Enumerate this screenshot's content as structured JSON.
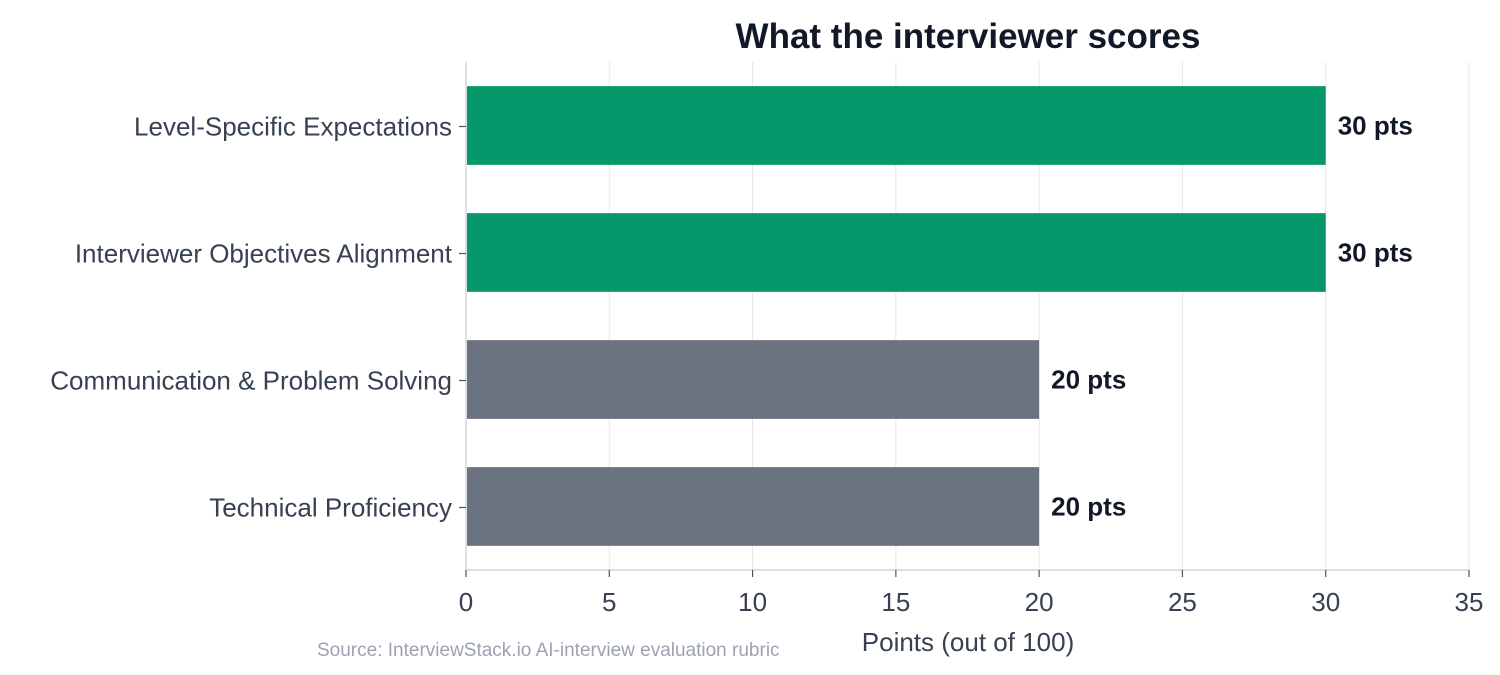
{
  "chart_data": {
    "type": "bar",
    "orientation": "horizontal",
    "title": "What the interviewer scores",
    "xlabel": "Points (out of 100)",
    "ylabel": "",
    "categories": [
      "Level-Specific Expectations",
      "Interviewer Objectives Alignment",
      "Communication & Problem Solving",
      "Technical Proficiency"
    ],
    "values": [
      30,
      30,
      20,
      20
    ],
    "value_labels": [
      "30 pts",
      "30 pts",
      "20 pts",
      "20 pts"
    ],
    "bar_colors": [
      "#06986a",
      "#06986a",
      "#6b7280",
      "#6b7280"
    ],
    "xlim": [
      0,
      35
    ],
    "xticks": [
      0,
      5,
      10,
      15,
      20,
      25,
      30,
      35
    ],
    "grid": true,
    "legend": "none"
  },
  "source_note": "Source: InterviewStack.io AI-interview evaluation rubric"
}
